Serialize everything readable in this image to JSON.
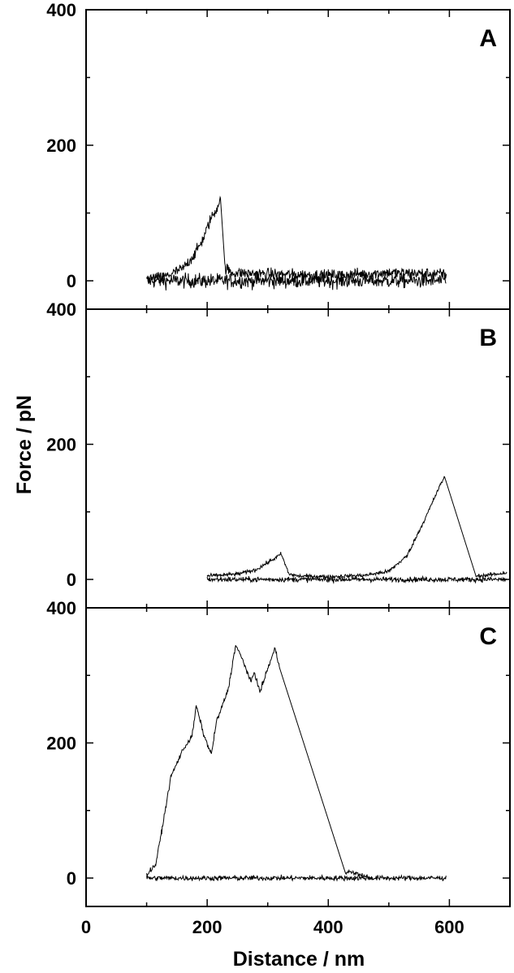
{
  "chart_data": {
    "type": "line",
    "xlabel": "Distance / nm",
    "ylabel": "Force / pN",
    "xlim": [
      0,
      700
    ],
    "ylim": [
      0,
      400
    ],
    "x_ticks": [
      0,
      200,
      400,
      600
    ],
    "y_ticks": [
      0,
      200,
      400
    ],
    "panels": [
      {
        "label": "A",
        "approach": {
          "name": "",
          "x_range": [
            100,
            595
          ],
          "y_baseline": 0,
          "noise_pN": 14
        },
        "retract": {
          "name": "",
          "x": [
            100,
            130,
            160,
            180,
            195,
            205,
            215,
            222,
            229,
            240,
            300,
            400,
            500,
            595
          ],
          "y": [
            2,
            6,
            18,
            40,
            65,
            90,
            105,
            122,
            20,
            12,
            10,
            8,
            12,
            10
          ],
          "noise_pN": 12
        }
      },
      {
        "label": "B",
        "approach": {
          "name": "",
          "x_range": [
            200,
            695
          ],
          "y_baseline": 0,
          "noise_pN": 5
        },
        "retract": {
          "name": "",
          "x": [
            200,
            250,
            280,
            300,
            315,
            322,
            335,
            350,
            400,
            460,
            500,
            530,
            560,
            585,
            592,
            643,
            660,
            695
          ],
          "y": [
            5,
            8,
            14,
            25,
            33,
            38,
            8,
            5,
            4,
            6,
            12,
            35,
            90,
            140,
            152,
            5,
            6,
            10
          ],
          "noise_pN": 4
        }
      },
      {
        "label": "C",
        "approach": {
          "name": "",
          "x_range": [
            100,
            595
          ],
          "y_baseline": 0,
          "noise_pN": 5
        },
        "retract": {
          "name": "",
          "x": [
            100,
            115,
            125,
            140,
            160,
            175,
            182,
            195,
            207,
            215,
            235,
            247,
            260,
            272,
            278,
            287,
            300,
            312,
            320,
            428,
            440,
            470
          ],
          "y": [
            5,
            20,
            70,
            150,
            190,
            210,
            255,
            210,
            183,
            230,
            280,
            345,
            320,
            290,
            305,
            275,
            310,
            340,
            310,
            10,
            8,
            0
          ],
          "noise_pN": 5
        }
      }
    ]
  }
}
